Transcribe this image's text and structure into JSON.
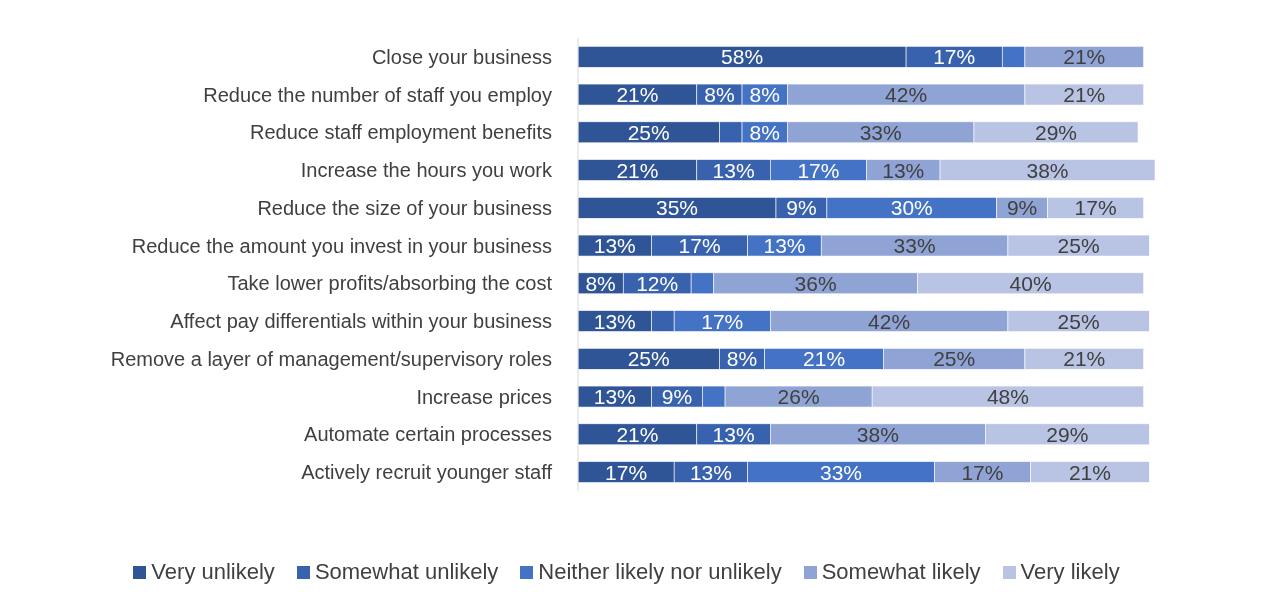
{
  "chart_data": {
    "type": "bar",
    "orientation": "horizontal",
    "stacked": true,
    "legend": "bottom",
    "grid": false,
    "categories": [
      "Close your business",
      "Reduce the number of staff you employ",
      "Reduce staff employment benefits",
      "Increase the hours you work",
      "Reduce the size of your business",
      "Reduce the amount you invest in your business",
      "Take lower profits/absorbing the cost",
      "Affect pay differentials within your business",
      "Remove a layer of management/supervisory roles",
      "Increase prices",
      "Automate certain processes",
      "Actively recruit younger staff"
    ],
    "series": [
      {
        "name": "Very unlikely",
        "color": "#2f5597",
        "values": [
          58,
          21,
          25,
          21,
          35,
          13,
          8,
          13,
          25,
          13,
          21,
          17
        ],
        "value_labels": [
          "58%",
          "21%",
          "25%",
          "21%",
          "35%",
          "13%",
          "8%",
          "13%",
          "25%",
          "13%",
          "21%",
          "17%"
        ]
      },
      {
        "name": "Somewhat unlikely",
        "color": "#3862ad",
        "values": [
          17,
          8,
          4,
          13,
          9,
          17,
          12,
          4,
          8,
          9,
          13,
          13
        ],
        "value_labels": [
          "17%",
          "8%",
          null,
          "13%",
          "9%",
          "17%",
          "12%",
          null,
          "8%",
          "9%",
          "13%",
          "13%"
        ]
      },
      {
        "name": "Neither likely nor unlikely",
        "color": "#4472c4",
        "values": [
          4,
          8,
          8,
          17,
          30,
          13,
          4,
          17,
          21,
          4,
          0,
          33
        ],
        "value_labels": [
          null,
          "8%",
          "8%",
          "17%",
          "30%",
          "13%",
          null,
          "17%",
          "21%",
          null,
          null,
          "33%"
        ]
      },
      {
        "name": "Somewhat likely",
        "color": "#8fa3d5",
        "values": [
          21,
          42,
          33,
          13,
          9,
          33,
          36,
          42,
          25,
          26,
          38,
          17
        ],
        "value_labels": [
          "21%",
          "42%",
          "33%",
          "13%",
          "9%",
          "33%",
          "36%",
          "42%",
          "25%",
          "26%",
          "38%",
          "17%"
        ]
      },
      {
        "name": "Very likely",
        "color": "#b9c3e3",
        "values": [
          0,
          21,
          29,
          38,
          17,
          25,
          40,
          25,
          21,
          48,
          29,
          21
        ],
        "value_labels": [
          null,
          "21%",
          "29%",
          "38%",
          "17%",
          "25%",
          "40%",
          "25%",
          "21%",
          "48%",
          "29%",
          "21%"
        ]
      }
    ]
  }
}
